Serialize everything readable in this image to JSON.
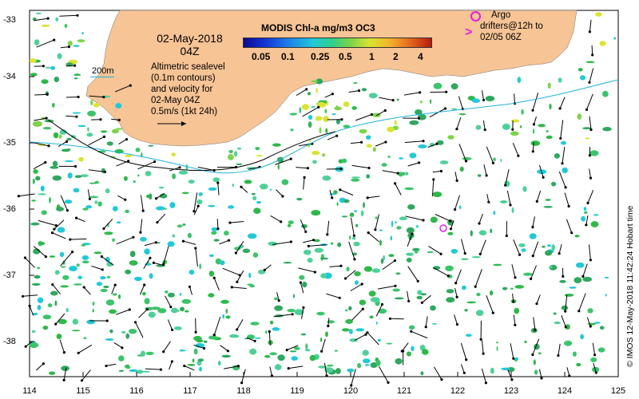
{
  "map": {
    "date": "02-May-2018",
    "time": "04Z",
    "contour_legend": "200m",
    "altimetry_lines": [
      "Altimetric sealevel",
      "(0.1m contours)",
      "and velocity for",
      "02-May 04Z",
      "0.5m/s (1kt 24h)"
    ],
    "colorbar": {
      "title": "MODIS Chl-a mg/m3 OC3",
      "ticks": [
        "0.05",
        "0.1",
        "0.25",
        "0.5",
        "1",
        "2",
        "4"
      ]
    },
    "argo": {
      "label_lines": [
        "Argo",
        "drifters@12h to",
        "02/05 06Z"
      ],
      "color": "#e020e0"
    },
    "credit": "© IMOS 12-May-2018 11:42:24 Hobart time",
    "axes": {
      "lat_ticks": [
        "-33",
        "-34",
        "-35",
        "-36",
        "-37",
        "-38"
      ],
      "lon_ticks": [
        "114",
        "115",
        "116",
        "117",
        "118",
        "119",
        "120",
        "121",
        "122",
        "123",
        "124",
        "125"
      ]
    },
    "colors": {
      "land": "#f7c495",
      "chl_low": "#21c9d8",
      "chl_mid": "#2fb84a",
      "chl_high": "#e8741f",
      "contour": "#1fb3d8"
    }
  }
}
